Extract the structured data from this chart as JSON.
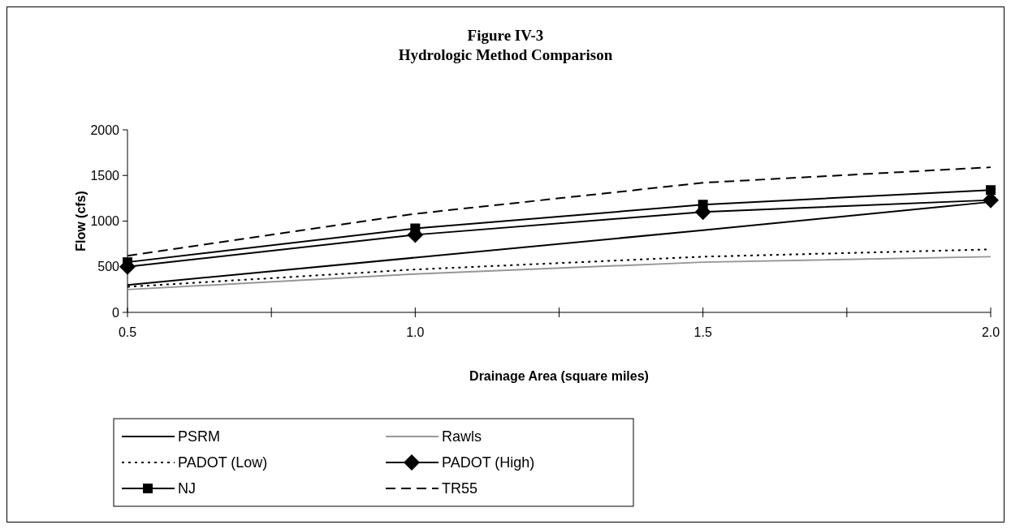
{
  "chart_data": {
    "type": "line",
    "title": "Figure IV-3",
    "subtitle": "Hydrologic Method Comparison",
    "xlabel": "Drainage Area (square miles)",
    "ylabel": "Flow (cfs)",
    "x": [
      0.5,
      1.0,
      1.5,
      2.0
    ],
    "xlim": [
      0.5,
      2.0
    ],
    "xticks": [
      0.5,
      {
        "value": 0.75,
        "label": null
      },
      {
        "value": 1.0,
        "label": "1.0"
      },
      {
        "value": 1.25,
        "label": null
      },
      1.5,
      {
        "value": 1.75,
        "label": null
      },
      {
        "value": 2.0,
        "label": "2.0"
      }
    ],
    "ylim": [
      0,
      2000
    ],
    "yticks": [
      0,
      500,
      1000,
      1500,
      2000
    ],
    "grid": false,
    "legend": "bottom",
    "series": [
      {
        "name": "PSRM",
        "color": "#000000",
        "values": [
          300,
          600,
          900,
          1210
        ],
        "line_style": "solid",
        "marker": "none"
      },
      {
        "name": "Rawls",
        "color": "#969696",
        "values": [
          250,
          420,
          550,
          610
        ],
        "line_style": "solid",
        "marker": "none"
      },
      {
        "name": "PADOT (Low)",
        "color": "#000000",
        "values": [
          280,
          470,
          610,
          690
        ],
        "line_style": "dotted",
        "marker": "none"
      },
      {
        "name": "PADOT (High)",
        "color": "#000000",
        "values": [
          500,
          850,
          1100,
          1230
        ],
        "line_style": "solid",
        "marker": "diamond"
      },
      {
        "name": "NJ",
        "color": "#000000",
        "values": [
          550,
          920,
          1180,
          1340
        ],
        "line_style": "solid",
        "marker": "square"
      },
      {
        "name": "TR55",
        "color": "#000000",
        "values": [
          620,
          1080,
          1420,
          1590
        ],
        "line_style": "dashed",
        "marker": "none"
      }
    ]
  }
}
